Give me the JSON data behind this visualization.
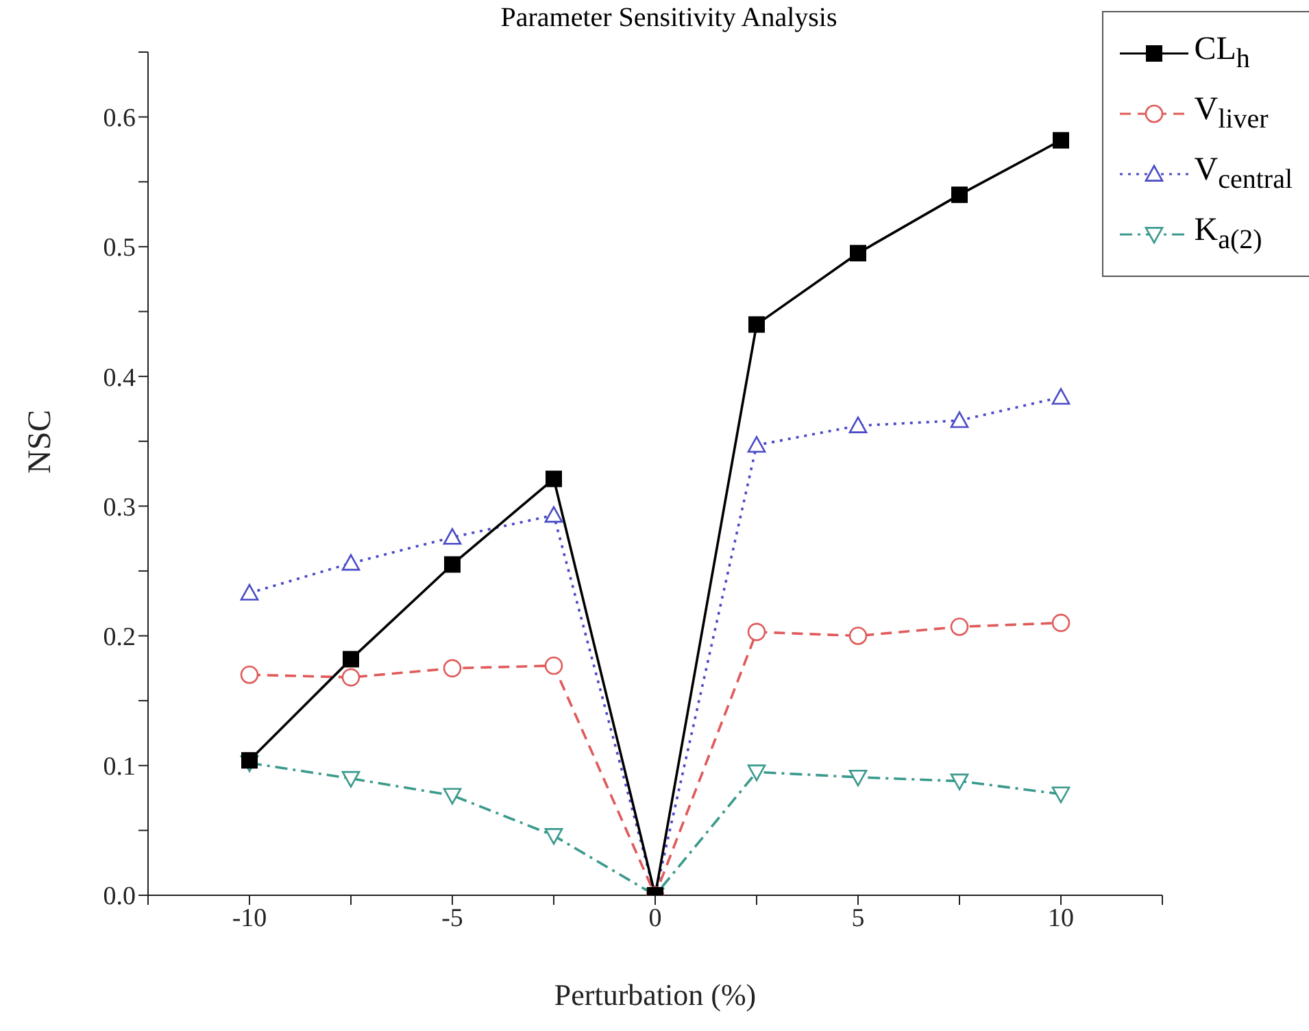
{
  "chart_data": {
    "type": "line",
    "title": "Parameter Sensitivity Analysis",
    "xlabel": "Perturbation (%)",
    "ylabel": "NSC",
    "x": [
      -10,
      -7.5,
      -5,
      -2.5,
      0,
      2.5,
      5,
      7.5,
      10
    ],
    "series": [
      {
        "name": "CL$_{h}$",
        "color": "#000000",
        "marker": "square",
        "line_style": "solid",
        "values": [
          0.104,
          0.182,
          0.255,
          0.321,
          0,
          0.44,
          0.495,
          0.54,
          0.582
        ]
      },
      {
        "name": "V$_{liver}$",
        "color": "#e05a5a",
        "marker": "circle",
        "line_style": "dashed",
        "values": [
          0.17,
          0.168,
          0.175,
          0.177,
          0,
          0.203,
          0.2,
          0.207,
          0.21
        ]
      },
      {
        "name": "V$_{central}$",
        "color": "#4a4ac8",
        "marker": "triangle",
        "line_style": "dotted",
        "values": [
          0.233,
          0.256,
          0.276,
          0.293,
          0,
          0.347,
          0.362,
          0.366,
          0.384
        ]
      },
      {
        "name": "K$_{a(2)}$",
        "color": "#3a9a8c",
        "marker": "triangle-down",
        "line_style": "dashdot",
        "values": [
          0.102,
          0.09,
          0.077,
          0.046,
          0,
          0.095,
          0.091,
          0.088,
          0.078
        ]
      }
    ],
    "xlim": [
      -12.5,
      12.5
    ],
    "xticks": [
      {
        "value": -12.5,
        "label": null
      },
      -10,
      {
        "value": -7.5,
        "label": null
      },
      -5,
      {
        "value": -2.5,
        "label": null
      },
      0,
      {
        "value": 2.5,
        "label": null
      },
      5,
      {
        "value": 7.5,
        "label": null
      },
      10,
      {
        "value": 12.5,
        "label": null
      }
    ],
    "ylim": [
      0,
      0.65
    ],
    "yticks": [
      {
        "value": 0,
        "label": "0.0"
      },
      {
        "value": 0.05,
        "label": null
      },
      0.1,
      {
        "value": 0.15,
        "label": null
      },
      0.2,
      {
        "value": 0.25,
        "label": null
      },
      0.3,
      {
        "value": 0.35,
        "label": null
      },
      0.4,
      {
        "value": 0.45,
        "label": null
      },
      0.5,
      {
        "value": 0.55,
        "label": null
      },
      0.6,
      {
        "value": 0.65,
        "label": null
      }
    ],
    "grid": false,
    "legend": "top right"
  }
}
